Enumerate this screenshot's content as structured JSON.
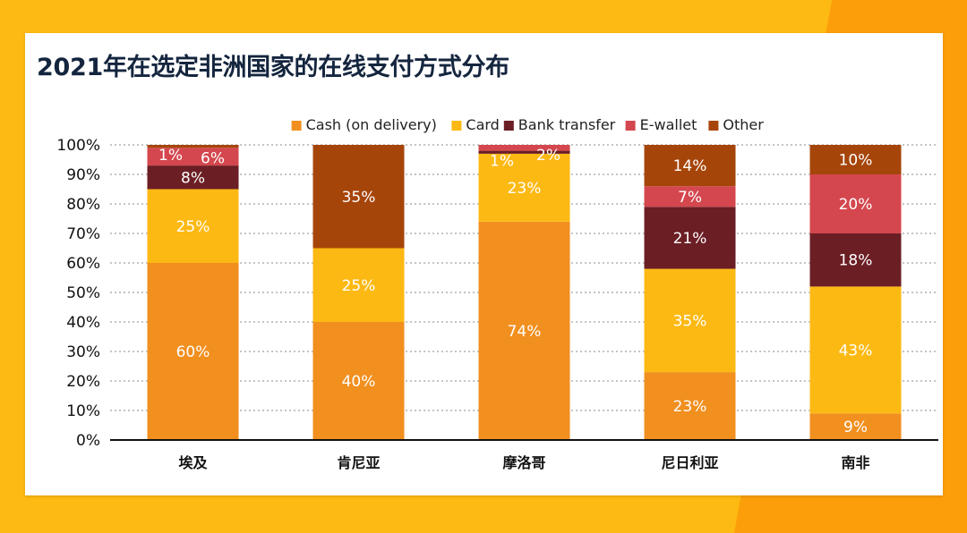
{
  "title": "2021年在选定非洲国家的在线支付方式分布",
  "chart_data": {
    "type": "bar",
    "stacked": true,
    "categories": [
      "埃及",
      "肯尼亚",
      "摩洛哥",
      "尼日利亚",
      "南非"
    ],
    "series": [
      {
        "name": "Cash (on delivery)",
        "color": "#F18F1F",
        "values": [
          60,
          40,
          74,
          23,
          9
        ]
      },
      {
        "name": "Card",
        "color": "#FDB913",
        "values": [
          25,
          25,
          23,
          35,
          43
        ]
      },
      {
        "name": "Bank transfer",
        "color": "#6B1E24",
        "values": [
          8,
          0,
          1,
          21,
          18
        ]
      },
      {
        "name": "E-wallet",
        "color": "#D4474E",
        "values": [
          6,
          0,
          2,
          7,
          20
        ]
      },
      {
        "name": "Other",
        "color": "#A6450A",
        "values": [
          1,
          35,
          0,
          14,
          10
        ]
      }
    ],
    "data_labels": [
      [
        "60%",
        "40%",
        "74%",
        "23%",
        "9%"
      ],
      [
        "25%",
        "25%",
        "23%",
        "35%",
        "43%"
      ],
      [
        "8%",
        "",
        "1%",
        "21%",
        "18%"
      ],
      [
        "6%",
        "",
        "2%",
        "7%",
        "20%"
      ],
      [
        "1%",
        "35%",
        "",
        "14%",
        "10%"
      ]
    ],
    "y_ticks": [
      "0%",
      "10%",
      "20%",
      "30%",
      "40%",
      "50%",
      "60%",
      "70%",
      "80%",
      "90%",
      "100%"
    ],
    "ylim": [
      0,
      100
    ],
    "grid": true,
    "legend_position": "top"
  }
}
